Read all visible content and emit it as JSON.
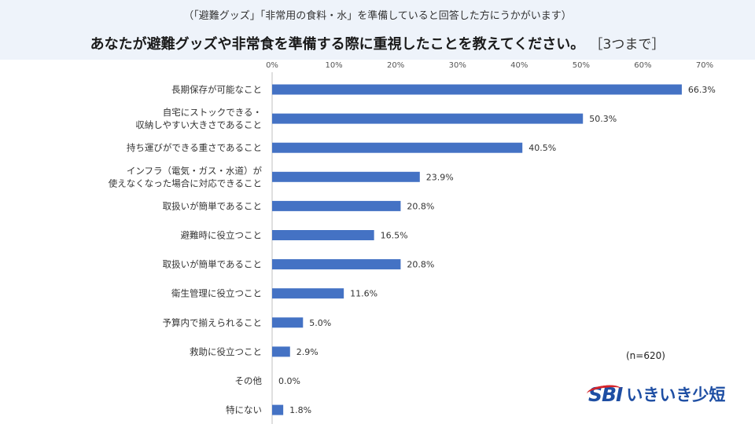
{
  "header": {
    "subtitle": "（「避難グッズ」「非常用の食料・水」を準備していると回答した方にうかがいます）",
    "title": "あなたが避難グッズや非常食を準備する際に重視したことを教えてください。",
    "title_note": "［3つまで］"
  },
  "sample_note": "(n=620)",
  "logo": {
    "mark": "SBI",
    "text": "いきいき少短"
  },
  "colors": {
    "bar": "#4472c4",
    "header_bg": "#eef3fa",
    "brand": "#1e4ea3",
    "brand_accent": "#d6242a"
  },
  "chart_data": {
    "type": "bar",
    "orientation": "horizontal",
    "title": "あなたが避難グッズや非常食を準備する際に重視したことを教えてください。",
    "xlabel": "",
    "ylabel": "",
    "xlim": [
      0,
      70
    ],
    "ticks": [
      "0%",
      "10%",
      "20%",
      "30%",
      "40%",
      "50%",
      "60%",
      "70%"
    ],
    "grid": false,
    "categories": [
      "長期保存が可能なこと",
      "自宅にストックできる・\n収納しやすい大きさであること",
      "持ち運びができる重さであること",
      "インフラ（電気・ガス・水道）が\n使えなくなった場合に対応できること",
      "取扱いが簡単であること",
      "避難時に役立つこと",
      "取扱いが簡単であること",
      "衛生管理に役立つこと",
      "予算内で揃えられること",
      "救助に役立つこと",
      "その他",
      "特にない"
    ],
    "values": [
      66.3,
      50.3,
      40.5,
      23.9,
      20.8,
      16.5,
      20.8,
      11.6,
      5.0,
      2.9,
      0.0,
      1.8
    ],
    "value_labels": [
      "66.3%",
      "50.3%",
      "40.5%",
      "23.9%",
      "20.8%",
      "16.5%",
      "20.8%",
      "11.6%",
      "5.0%",
      "2.9%",
      "0.0%",
      "1.8%"
    ]
  }
}
